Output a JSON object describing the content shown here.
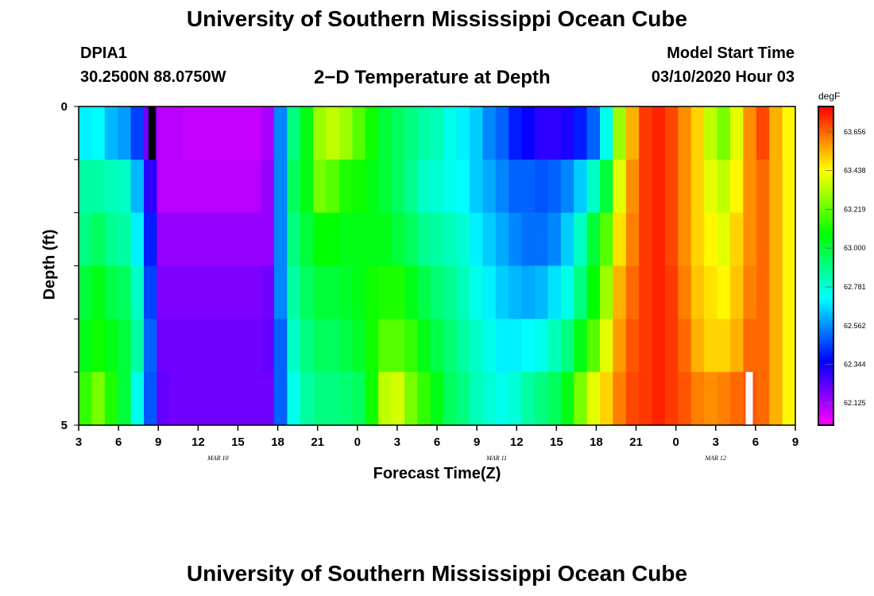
{
  "header": {
    "title": "University of Southern Mississippi Ocean Cube",
    "station": "DPIA1",
    "coords": "30.2500N 88.0750W",
    "subtitle": "2−D Temperature at Depth",
    "start_label": "Model Start Time",
    "start_time": "03/10/2020 Hour 03"
  },
  "footer": {
    "title": "University of Southern Mississippi Ocean Cube"
  },
  "chart_data": {
    "type": "heatmap",
    "xlabel": "Forecast Time(Z)",
    "ylabel": "Depth (ft)",
    "x_ticks": [
      "3",
      "6",
      "9",
      "12",
      "15",
      "18",
      "21",
      "0",
      "3",
      "6",
      "9",
      "12",
      "15",
      "18",
      "21",
      "0",
      "3",
      "6",
      "9"
    ],
    "date_labels": [
      {
        "label": "MAR 10",
        "after_tick": 3
      },
      {
        "label": "MAR 11",
        "after_tick": 10
      },
      {
        "label": "MAR 12",
        "after_tick": 15.5
      }
    ],
    "y_ticks": [
      "0",
      "5"
    ],
    "ylim": [
      0,
      5
    ],
    "colorbar": {
      "unit": "degF",
      "min": 62.0,
      "max": 63.8,
      "ticks": [
        62.125,
        62.344,
        62.562,
        62.781,
        63.0,
        63.219,
        63.438,
        63.656
      ]
    },
    "time_step_hours": 1,
    "hours_from_start": [
      0,
      54
    ],
    "rows": [
      [
        62.7,
        62.73,
        62.62,
        62.58,
        62.45,
        62.2,
        62.1,
        62.1,
        62.08,
        62.08,
        62.08,
        62.08,
        62.08,
        62.08,
        62.12,
        62.55,
        62.9,
        63.05,
        63.3,
        63.35,
        63.3,
        63.2,
        63.1,
        63.0,
        62.95,
        62.9,
        62.85,
        62.82,
        62.75,
        62.7,
        62.65,
        62.55,
        62.5,
        62.4,
        62.35,
        62.3,
        62.3,
        62.32,
        62.4,
        62.5,
        62.75,
        63.3,
        63.55,
        63.72,
        63.75,
        63.7,
        63.6,
        63.5,
        63.35,
        63.25,
        63.4,
        63.6,
        63.7,
        63.55,
        63.45
      ],
      [
        62.85,
        62.85,
        62.82,
        62.8,
        62.62,
        62.3,
        62.1,
        62.1,
        62.1,
        62.1,
        62.1,
        62.1,
        62.1,
        62.1,
        62.15,
        62.55,
        62.95,
        63.05,
        63.25,
        63.2,
        63.12,
        63.1,
        63.05,
        63.0,
        62.95,
        62.88,
        62.8,
        62.78,
        62.75,
        62.72,
        62.65,
        62.6,
        62.55,
        62.5,
        62.5,
        62.48,
        62.5,
        62.55,
        62.65,
        62.8,
        63.0,
        63.4,
        63.6,
        63.72,
        63.75,
        63.7,
        63.6,
        63.5,
        63.4,
        63.35,
        63.45,
        63.6,
        63.65,
        63.55,
        63.45
      ],
      [
        62.9,
        62.95,
        62.88,
        62.85,
        62.7,
        62.4,
        62.15,
        62.15,
        62.15,
        62.15,
        62.15,
        62.15,
        62.15,
        62.15,
        62.15,
        62.55,
        62.9,
        63.0,
        63.08,
        63.08,
        63.05,
        63.05,
        63.05,
        63.05,
        63.0,
        62.95,
        62.88,
        62.85,
        62.82,
        62.78,
        62.7,
        62.65,
        62.6,
        62.55,
        62.52,
        62.52,
        62.55,
        62.65,
        62.8,
        63.0,
        63.2,
        63.48,
        63.62,
        63.72,
        63.75,
        63.7,
        63.6,
        63.5,
        63.45,
        63.4,
        63.5,
        63.6,
        63.65,
        63.55,
        63.45
      ],
      [
        63.0,
        63.05,
        62.98,
        62.95,
        62.8,
        62.45,
        62.18,
        62.18,
        62.18,
        62.18,
        62.18,
        62.18,
        62.18,
        62.18,
        62.2,
        62.55,
        62.85,
        62.95,
        63.0,
        63.0,
        63.02,
        63.05,
        63.1,
        63.12,
        63.12,
        63.05,
        62.98,
        62.92,
        62.88,
        62.82,
        62.75,
        62.7,
        62.65,
        62.62,
        62.6,
        62.62,
        62.68,
        62.75,
        62.9,
        63.08,
        63.3,
        63.55,
        63.65,
        63.72,
        63.75,
        63.72,
        63.62,
        63.52,
        63.48,
        63.45,
        63.52,
        63.62,
        63.65,
        63.55,
        63.45
      ],
      [
        63.05,
        63.1,
        63.05,
        63.0,
        62.85,
        62.5,
        62.2,
        62.2,
        62.2,
        62.2,
        62.2,
        62.2,
        62.2,
        62.2,
        62.22,
        62.5,
        62.8,
        62.9,
        62.95,
        62.95,
        62.98,
        63.02,
        63.1,
        63.2,
        63.2,
        63.15,
        63.05,
        62.98,
        62.92,
        62.85,
        62.8,
        62.75,
        62.7,
        62.7,
        62.72,
        62.75,
        62.82,
        62.9,
        63.05,
        63.2,
        63.4,
        63.58,
        63.68,
        63.72,
        63.75,
        63.72,
        63.65,
        63.55,
        63.5,
        63.5,
        63.55,
        63.65,
        63.65,
        63.55,
        63.45
      ],
      [
        63.15,
        63.25,
        63.12,
        63.0,
        62.75,
        62.48,
        62.22,
        62.2,
        62.2,
        62.2,
        62.2,
        62.2,
        62.2,
        62.2,
        62.2,
        62.5,
        62.75,
        62.85,
        62.9,
        62.9,
        62.92,
        62.95,
        63.1,
        63.35,
        63.38,
        63.25,
        63.15,
        63.05,
        62.95,
        62.9,
        62.82,
        62.78,
        62.75,
        62.78,
        62.85,
        62.9,
        62.95,
        63.05,
        63.25,
        63.4,
        63.5,
        63.62,
        63.7,
        63.72,
        63.75,
        63.72,
        63.68,
        63.62,
        63.6,
        63.62,
        63.65,
        63.68,
        63.65,
        63.55,
        63.45
      ]
    ],
    "masked_cells": [
      {
        "row": 0,
        "hour": 5.5,
        "color": "#000000"
      },
      {
        "row": 5,
        "hour": 50.5,
        "color": "#ffffff"
      }
    ]
  }
}
